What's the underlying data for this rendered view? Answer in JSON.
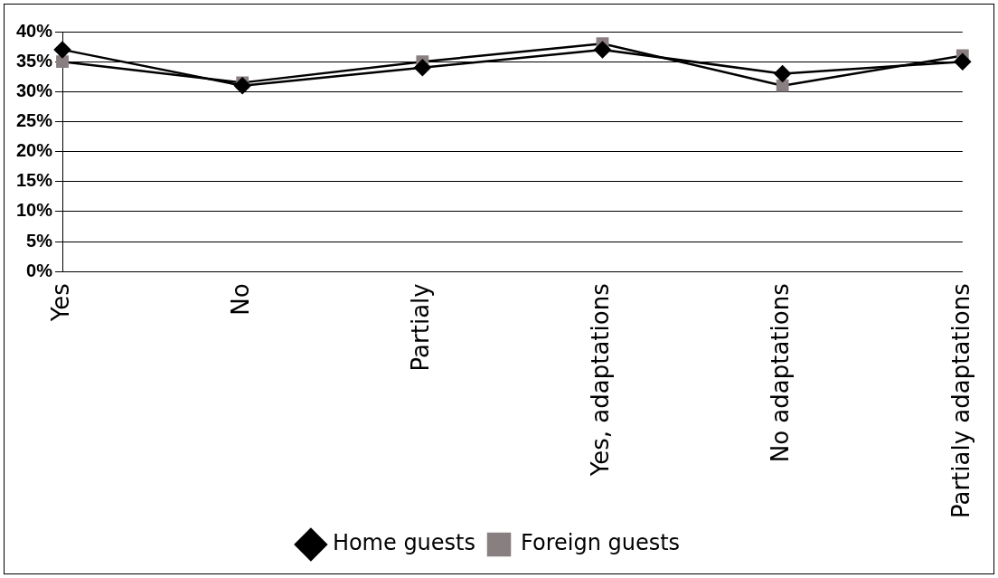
{
  "chart_data": {
    "type": "line",
    "categories": [
      "Yes",
      "No",
      "Partialy",
      "Yes, adaptations",
      "No adaptations",
      "Partialy adaptations"
    ],
    "series": [
      {
        "name": "Home guests",
        "color": "#000000",
        "marker": "diamond",
        "values": [
          37,
          31,
          34,
          37,
          33,
          35
        ]
      },
      {
        "name": "Foreign guests",
        "color": "#8a7f80",
        "marker": "square",
        "values": [
          35,
          31.5,
          35,
          38,
          31,
          36
        ]
      }
    ],
    "ylim": [
      0,
      40
    ],
    "yticks": [
      {
        "value": 0,
        "label": "0%"
      },
      {
        "value": 5,
        "label": "5%"
      },
      {
        "value": 10,
        "label": "10%"
      },
      {
        "value": 15,
        "label": "15%"
      },
      {
        "value": 20,
        "label": "20%"
      },
      {
        "value": 25,
        "label": "25%"
      },
      {
        "value": 30,
        "label": "30%"
      },
      {
        "value": 35,
        "label": "35%"
      },
      {
        "value": 40,
        "label": "40%"
      }
    ],
    "grid": "y",
    "legend": "bottom",
    "line_style": "solid"
  }
}
